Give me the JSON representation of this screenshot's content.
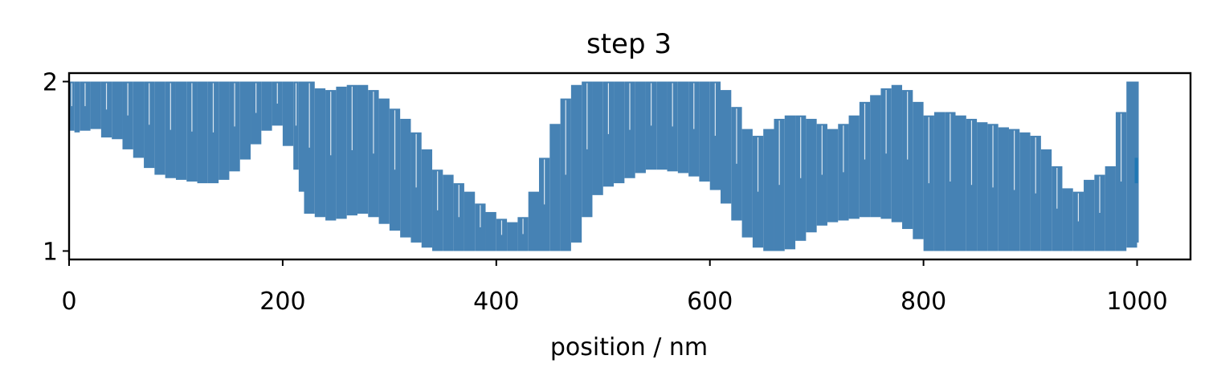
{
  "chart_data": {
    "type": "line",
    "title": "step 3",
    "xlabel": "position / nm",
    "ylabel": "",
    "xlim": [
      0,
      1050
    ],
    "ylim": [
      0.95,
      2.05
    ],
    "xticks": [
      0,
      200,
      400,
      600,
      800,
      1000
    ],
    "yticks": [
      1,
      2
    ],
    "grid": false,
    "line_color": "#4682b4",
    "marker_color": "#1f77b4",
    "series": [
      {
        "x": [
          0,
          5,
          10,
          20,
          30,
          40,
          50,
          60,
          70,
          80,
          90,
          100,
          110,
          120,
          130,
          140,
          150,
          160,
          170,
          180,
          190,
          200,
          210,
          215,
          220,
          230,
          240,
          250,
          260,
          270,
          280,
          290,
          300,
          310,
          320,
          330,
          340,
          350,
          360,
          370,
          380,
          390,
          400,
          410,
          420,
          430,
          440,
          450,
          460,
          470,
          480,
          490,
          500,
          510,
          520,
          530,
          540,
          550,
          560,
          570,
          580,
          590,
          600,
          610,
          620,
          630,
          640,
          650,
          660,
          670,
          680,
          690,
          700,
          710,
          720,
          730,
          740,
          750,
          760,
          770,
          780,
          790,
          800,
          810,
          820,
          830,
          840,
          850,
          860,
          870,
          880,
          890,
          900,
          910,
          920,
          930,
          940,
          950,
          960,
          970,
          980,
          990,
          1000
        ],
        "lower": [
          1.71,
          1.7,
          1.71,
          1.72,
          1.67,
          1.66,
          1.6,
          1.55,
          1.49,
          1.45,
          1.43,
          1.42,
          1.41,
          1.4,
          1.4,
          1.42,
          1.47,
          1.54,
          1.63,
          1.71,
          1.74,
          1.62,
          1.48,
          1.35,
          1.22,
          1.2,
          1.18,
          1.19,
          1.21,
          1.22,
          1.2,
          1.16,
          1.12,
          1.08,
          1.05,
          1.02,
          1.0,
          1.0,
          1.0,
          1.0,
          1.0,
          1.0,
          1.0,
          1.0,
          1.0,
          1.0,
          1.0,
          1.0,
          1.0,
          1.05,
          1.2,
          1.33,
          1.38,
          1.4,
          1.43,
          1.46,
          1.48,
          1.48,
          1.47,
          1.46,
          1.44,
          1.41,
          1.36,
          1.28,
          1.18,
          1.08,
          1.02,
          1.0,
          1.0,
          1.01,
          1.06,
          1.11,
          1.15,
          1.17,
          1.18,
          1.19,
          1.2,
          1.2,
          1.19,
          1.17,
          1.13,
          1.07,
          1.0,
          1.0,
          1.0,
          1.0,
          1.0,
          1.0,
          1.0,
          1.0,
          1.0,
          1.0,
          1.0,
          1.0,
          1.0,
          1.0,
          1.0,
          1.0,
          1.0,
          1.0,
          1.0,
          1.02,
          1.05
        ],
        "upper": [
          2.0,
          2.0,
          2.0,
          2.0,
          2.0,
          2.0,
          2.0,
          2.0,
          2.0,
          2.0,
          2.0,
          2.0,
          2.0,
          2.0,
          2.0,
          2.0,
          2.0,
          2.0,
          2.0,
          2.0,
          2.0,
          2.0,
          2.0,
          2.0,
          2.0,
          1.96,
          1.95,
          1.97,
          1.98,
          1.98,
          1.95,
          1.9,
          1.84,
          1.78,
          1.7,
          1.6,
          1.48,
          1.45,
          1.4,
          1.35,
          1.28,
          1.23,
          1.19,
          1.17,
          1.2,
          1.35,
          1.55,
          1.75,
          1.9,
          1.98,
          2.0,
          2.0,
          2.0,
          2.0,
          2.0,
          2.0,
          2.0,
          2.0,
          2.0,
          2.0,
          2.0,
          2.0,
          2.0,
          1.95,
          1.85,
          1.72,
          1.68,
          1.72,
          1.78,
          1.8,
          1.8,
          1.78,
          1.75,
          1.72,
          1.75,
          1.8,
          1.88,
          1.92,
          1.96,
          1.98,
          1.95,
          1.88,
          1.8,
          1.82,
          1.82,
          1.8,
          1.78,
          1.76,
          1.75,
          1.73,
          1.72,
          1.7,
          1.68,
          1.6,
          1.5,
          1.37,
          1.35,
          1.42,
          1.45,
          1.5,
          1.82,
          2.0,
          2.0
        ]
      }
    ],
    "marker": {
      "x": 1000,
      "y_range": [
        1.4,
        1.55
      ]
    }
  }
}
